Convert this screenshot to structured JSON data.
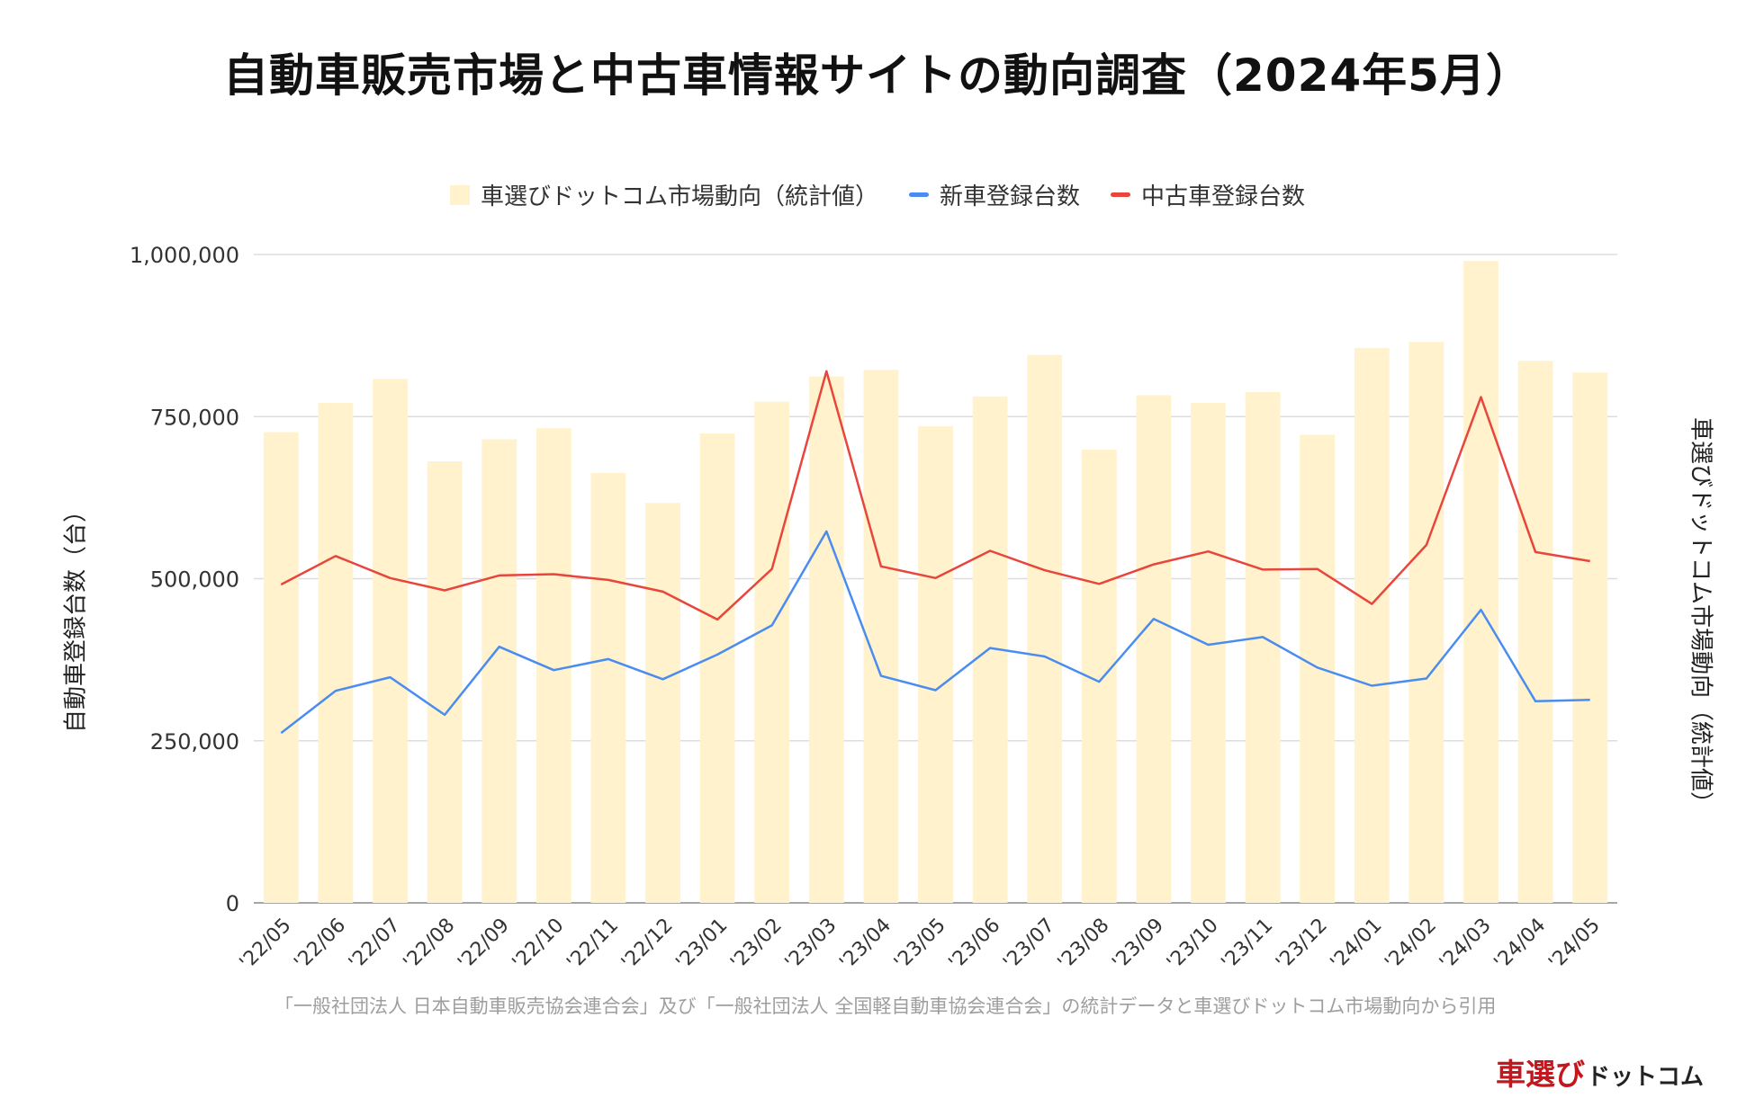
{
  "title": "自動車販売市場と中古車情報サイトの動向調査（2024年5月）",
  "legend": {
    "bar": "車選びドットコム市場動向（統計値）",
    "new": "新車登録台数",
    "used": "中古車登録台数"
  },
  "colors": {
    "bar": "#fff2cc",
    "new": "#4a8cf0",
    "used": "#e8453c",
    "grid": "#dddddd",
    "brand": "#c5161d"
  },
  "axes": {
    "y_left": "自動車登録台数（台）",
    "y_right": "車選びドットコム市場動向（統計値）"
  },
  "source_note": "「一般社団法人 日本自動車販売協会連合会」及び「一般社団法人 全国軽自動車協会連合会」の統計データと車選びドットコム市場動向から引用",
  "brand": {
    "main": "車選び",
    "sub": "ドットコム"
  },
  "chart_data": {
    "type": "bar",
    "title": "自動車販売市場と中古車情報サイトの動向調査（2024年5月）",
    "categories": [
      "'22/05",
      "'22/06",
      "'22/07",
      "'22/08",
      "'22/09",
      "'22/10",
      "'22/11",
      "'22/12",
      "'23/01",
      "'23/02",
      "'23/03",
      "'23/04",
      "'23/05",
      "'23/06",
      "'23/07",
      "'23/08",
      "'23/09",
      "'23/10",
      "'23/11",
      "'23/12",
      "'24/01",
      "'24/02",
      "'24/03",
      "'24/04",
      "'24/05"
    ],
    "ylim": [
      0,
      1000000
    ],
    "yticks": [
      0,
      250000,
      500000,
      750000,
      1000000
    ],
    "ytick_labels": [
      "0",
      "250,000",
      "500,000",
      "750,000",
      "1,000,000"
    ],
    "ylabel": "自動車登録台数（台）",
    "y2label": "車選びドットコム市場動向（統計値）",
    "grid": true,
    "legend_position": "top",
    "series": [
      {
        "name": "車選びドットコム市場動向（統計値）",
        "type": "bar",
        "values": [
          726000,
          771000,
          808000,
          681000,
          715000,
          732000,
          663000,
          617000,
          724000,
          773000,
          812000,
          822000,
          735000,
          781000,
          845000,
          699000,
          783000,
          771000,
          788000,
          722000,
          856000,
          865000,
          990000,
          836000,
          818000
        ]
      },
      {
        "name": "新車登録台数",
        "type": "line",
        "values": [
          262000,
          327000,
          348000,
          290000,
          395000,
          359000,
          376000,
          345000,
          383000,
          428000,
          573000,
          350000,
          328000,
          393000,
          380000,
          341000,
          438000,
          398000,
          410000,
          363000,
          335000,
          346000,
          452000,
          311000,
          313000
        ]
      },
      {
        "name": "中古車登録台数",
        "type": "line",
        "values": [
          491000,
          535000,
          501000,
          482000,
          505000,
          507000,
          498000,
          480000,
          437000,
          515000,
          820000,
          519000,
          501000,
          543000,
          513000,
          492000,
          522000,
          542000,
          514000,
          515000,
          461000,
          552000,
          780000,
          541000,
          527000
        ]
      }
    ]
  }
}
